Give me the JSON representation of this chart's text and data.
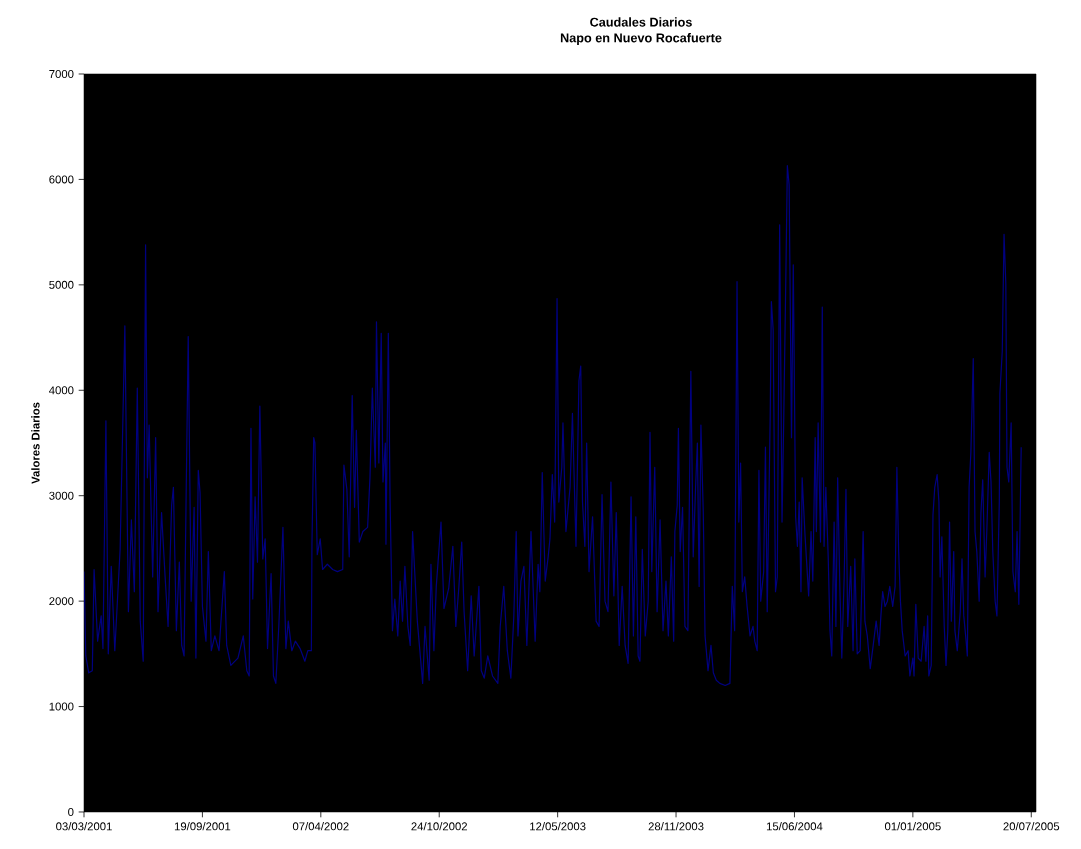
{
  "chart_data": {
    "type": "line",
    "title": "Caudales Diarios",
    "subtitle": "Napo en Nuevo Rocafuerte",
    "ylabel": "Valores Diarios",
    "xlim": [
      "2001-03-03",
      "2005-07-28"
    ],
    "ylim": [
      0,
      7000
    ],
    "xticks": [
      {
        "value": "2001-03-03",
        "label": "03/03/2001"
      },
      {
        "value": "2001-09-19",
        "label": "19/09/2001"
      },
      {
        "value": "2002-04-07",
        "label": "07/04/2002"
      },
      {
        "value": "2002-10-24",
        "label": "24/10/2002"
      },
      {
        "value": "2003-05-12",
        "label": "12/05/2003"
      },
      {
        "value": "2003-11-28",
        "label": "28/11/2003"
      },
      {
        "value": "2004-06-15",
        "label": "15/06/2004"
      },
      {
        "value": "2005-01-01",
        "label": "01/01/2005"
      },
      {
        "value": "2005-07-20",
        "label": "20/07/2005"
      }
    ],
    "yticks": [
      0,
      1000,
      2000,
      3000,
      4000,
      5000,
      6000,
      7000
    ],
    "x": [
      "2001-03-03",
      "2001-03-06",
      "2001-03-11",
      "2001-03-17",
      "2001-03-20",
      "2001-03-26",
      "2001-04-01",
      "2001-04-04",
      "2001-04-09",
      "2001-04-13",
      "2001-04-18",
      "2001-04-24",
      "2001-05-03",
      "2001-05-11",
      "2001-05-17",
      "2001-05-22",
      "2001-05-27",
      "2001-06-01",
      "2001-06-06",
      "2001-06-11",
      "2001-06-15",
      "2001-06-18",
      "2001-06-21",
      "2001-06-27",
      "2001-07-02",
      "2001-07-06",
      "2001-07-12",
      "2001-07-18",
      "2001-07-23",
      "2001-07-29",
      "2001-08-01",
      "2001-08-06",
      "2001-08-11",
      "2001-08-15",
      "2001-08-19",
      "2001-08-26",
      "2001-08-31",
      "2001-09-05",
      "2001-09-08",
      "2001-09-12",
      "2001-09-15",
      "2001-09-19",
      "2001-09-25",
      "2001-09-29",
      "2001-10-04",
      "2001-10-10",
      "2001-10-17",
      "2001-10-26",
      "2001-10-30",
      "2001-11-06",
      "2001-11-18",
      "2001-11-27",
      "2001-12-03",
      "2001-12-07",
      "2001-12-10",
      "2001-12-13",
      "2001-12-17",
      "2001-12-21",
      "2001-12-25",
      "2001-12-30",
      "2002-01-03",
      "2002-01-07",
      "2002-01-13",
      "2002-01-17",
      "2002-01-21",
      "2002-01-26",
      "2002-02-02",
      "2002-02-07",
      "2002-02-11",
      "2002-02-17",
      "2002-02-23",
      "2002-03-03",
      "2002-03-11",
      "2002-03-16",
      "2002-03-22",
      "2002-03-23",
      "2002-03-26",
      "2002-03-28",
      "2002-04-01",
      "2002-04-06",
      "2002-04-10",
      "2002-04-18",
      "2002-04-27",
      "2002-05-05",
      "2002-05-14",
      "2002-05-16",
      "2002-05-21",
      "2002-05-25",
      "2002-05-30",
      "2002-06-03",
      "2002-06-06",
      "2002-06-11",
      "2002-06-17",
      "2002-06-25",
      "2002-06-29",
      "2002-07-03",
      "2002-07-08",
      "2002-07-10",
      "2002-07-14",
      "2002-07-18",
      "2002-07-21",
      "2002-07-25",
      "2002-07-26",
      "2002-07-30",
      "2002-08-02",
      "2002-08-06",
      "2002-08-10",
      "2002-08-15",
      "2002-08-19",
      "2002-08-23",
      "2002-08-27",
      "2002-09-01",
      "2002-09-05",
      "2002-09-09",
      "2002-09-17",
      "2002-09-26",
      "2002-09-30",
      "2002-10-07",
      "2002-10-10",
      "2002-10-15",
      "2002-10-19",
      "2002-10-27",
      "2002-11-01",
      "2002-11-09",
      "2002-11-16",
      "2002-11-21",
      "2002-11-26",
      "2002-12-01",
      "2002-12-05",
      "2002-12-11",
      "2002-12-17",
      "2002-12-22",
      "2002-12-30",
      "2003-01-03",
      "2003-01-08",
      "2003-01-14",
      "2003-01-22",
      "2003-01-31",
      "2003-02-04",
      "2003-02-10",
      "2003-02-16",
      "2003-02-22",
      "2003-02-27",
      "2003-03-03",
      "2003-03-06",
      "2003-03-11",
      "2003-03-16",
      "2003-03-21",
      "2003-03-28",
      "2003-04-04",
      "2003-04-09",
      "2003-04-12",
      "2003-04-16",
      "2003-04-21",
      "2003-04-26",
      "2003-04-29",
      "2003-05-03",
      "2003-05-07",
      "2003-05-11",
      "2003-05-14",
      "2003-05-19",
      "2003-05-21",
      "2003-05-26",
      "2003-06-02",
      "2003-06-06",
      "2003-06-12",
      "2003-06-17",
      "2003-06-20",
      "2003-06-23",
      "2003-06-27",
      "2003-06-30",
      "2003-07-04",
      "2003-07-10",
      "2003-07-16",
      "2003-07-21",
      "2003-07-26",
      "2003-07-31",
      "2003-08-05",
      "2003-08-10",
      "2003-08-15",
      "2003-08-19",
      "2003-08-24",
      "2003-08-29",
      "2003-09-03",
      "2003-09-08",
      "2003-09-13",
      "2003-09-17",
      "2003-09-21",
      "2003-09-25",
      "2003-09-28",
      "2003-10-02",
      "2003-10-07",
      "2003-10-12",
      "2003-10-15",
      "2003-10-18",
      "2003-10-23",
      "2003-10-27",
      "2003-11-01",
      "2003-11-06",
      "2003-11-11",
      "2003-11-15",
      "2003-11-20",
      "2003-11-24",
      "2003-11-26",
      "2003-11-30",
      "2003-12-02",
      "2003-12-05",
      "2003-12-09",
      "2003-12-13",
      "2003-12-18",
      "2003-12-23",
      "2003-12-27",
      "2003-12-31",
      "2004-01-03",
      "2004-01-06",
      "2004-01-09",
      "2004-01-13",
      "2004-01-16",
      "2004-01-21",
      "2004-01-26",
      "2004-01-30",
      "2004-02-04",
      "2004-02-10",
      "2004-02-19",
      "2004-02-27",
      "2004-03-02",
      "2004-03-06",
      "2004-03-10",
      "2004-03-13",
      "2004-03-16",
      "2004-03-19",
      "2004-03-23",
      "2004-03-27",
      "2004-04-01",
      "2004-04-06",
      "2004-04-09",
      "2004-04-13",
      "2004-04-16",
      "2004-04-19",
      "2004-04-24",
      "2004-04-27",
      "2004-04-30",
      "2004-05-05",
      "2004-05-07",
      "2004-05-10",
      "2004-05-14",
      "2004-05-17",
      "2004-05-21",
      "2004-05-25",
      "2004-05-28",
      "2004-06-01",
      "2004-06-03",
      "2004-06-06",
      "2004-06-10",
      "2004-06-13",
      "2004-06-17",
      "2004-06-20",
      "2004-06-23",
      "2004-06-26",
      "2004-06-28",
      "2004-07-03",
      "2004-07-06",
      "2004-07-09",
      "2004-07-13",
      "2004-07-16",
      "2004-07-20",
      "2004-07-22",
      "2004-07-25",
      "2004-07-29",
      "2004-08-01",
      "2004-08-04",
      "2004-08-07",
      "2004-08-11",
      "2004-08-14",
      "2004-08-17",
      "2004-08-21",
      "2004-08-24",
      "2004-08-27",
      "2004-08-31",
      "2004-09-03",
      "2004-09-07",
      "2004-09-10",
      "2004-09-13",
      "2004-09-18",
      "2004-09-22",
      "2004-09-25",
      "2004-09-29",
      "2004-10-04",
      "2004-10-09",
      "2004-10-12",
      "2004-10-16",
      "2004-10-21",
      "2004-10-26",
      "2004-10-31",
      "2004-11-05",
      "2004-11-08",
      "2004-11-11",
      "2004-11-15",
      "2004-11-19",
      "2004-11-23",
      "2004-11-28",
      "2004-12-02",
      "2004-12-05",
      "2004-12-08",
      "2004-12-11",
      "2004-12-14",
      "2004-12-19",
      "2004-12-24",
      "2004-12-27",
      "2005-01-01",
      "2005-01-03",
      "2005-01-06",
      "2005-01-10",
      "2005-01-15",
      "2005-01-20",
      "2005-01-23",
      "2005-01-26",
      "2005-01-28",
      "2005-02-01",
      "2005-02-04",
      "2005-02-07",
      "2005-02-11",
      "2005-02-14",
      "2005-02-16",
      "2005-02-19",
      "2005-02-23",
      "2005-02-26",
      "2005-03-01",
      "2005-03-04",
      "2005-03-07",
      "2005-03-11",
      "2005-03-13",
      "2005-03-17",
      "2005-03-22",
      "2005-03-25",
      "2005-03-28",
      "2005-04-01",
      "2005-04-03",
      "2005-04-06",
      "2005-04-09",
      "2005-04-13",
      "2005-04-16",
      "2005-04-19",
      "2005-04-23",
      "2005-04-26",
      "2005-04-29",
      "2005-05-03",
      "2005-05-06",
      "2005-05-10",
      "2005-05-13",
      "2005-05-16",
      "2005-05-20",
      "2005-05-23",
      "2005-05-27",
      "2005-05-28",
      "2005-06-01",
      "2005-06-04",
      "2005-06-07",
      "2005-06-09",
      "2005-06-12",
      "2005-06-16",
      "2005-06-19",
      "2005-06-23",
      "2005-06-26",
      "2005-06-29",
      "2005-07-03"
    ],
    "series": [
      {
        "color": "#000080",
        "values": [
          2280,
          1480,
          1320,
          1340,
          2300,
          1620,
          1860,
          1550,
          3710,
          1500,
          2330,
          1530,
          2490,
          4610,
          1900,
          2770,
          2090,
          4020,
          1810,
          1430,
          5380,
          3170,
          3670,
          2230,
          3550,
          1900,
          2840,
          2230,
          1760,
          2910,
          3080,
          1720,
          2370,
          1580,
          1480,
          4510,
          2000,
          2890,
          1460,
          3240,
          3030,
          1950,
          1620,
          2470,
          1530,
          1670,
          1530,
          2280,
          1580,
          1390,
          1460,
          1670,
          1340,
          1290,
          3640,
          2020,
          2990,
          2370,
          3850,
          2400,
          2590,
          1550,
          2260,
          1290,
          1220,
          1760,
          2700,
          1550,
          1810,
          1530,
          1620,
          1550,
          1430,
          1530,
          1530,
          2540,
          3550,
          3500,
          2440,
          2590,
          2300,
          2350,
          2300,
          2280,
          2300,
          3290,
          3060,
          2420,
          3950,
          2890,
          3620,
          2560,
          2660,
          2700,
          3170,
          4020,
          3270,
          4650,
          3310,
          4540,
          3130,
          3500,
          2540,
          4540,
          2940,
          1720,
          2020,
          1670,
          2190,
          1810,
          2330,
          1760,
          1580,
          2660,
          1810,
          1220,
          1760,
          1250,
          2350,
          1530,
          2140,
          2750,
          1930,
          2120,
          2520,
          1760,
          2120,
          2560,
          1900,
          1340,
          2050,
          1480,
          2140,
          1340,
          1270,
          1480,
          1290,
          1220,
          1760,
          2140,
          1530,
          1270,
          1860,
          2660,
          1670,
          2190,
          2330,
          1580,
          2660,
          1620,
          2350,
          2090,
          3220,
          2190,
          2420,
          2590,
          3200,
          2750,
          4870,
          2940,
          3270,
          3690,
          2660,
          3080,
          3780,
          2520,
          4090,
          4230,
          2940,
          2520,
          3500,
          2280,
          2800,
          1810,
          1760,
          3010,
          2000,
          1900,
          3130,
          2050,
          2840,
          1580,
          2140,
          1580,
          1410,
          2990,
          1670,
          2800,
          1480,
          1430,
          2490,
          1670,
          2000,
          3600,
          2280,
          3270,
          1900,
          2770,
          1720,
          2190,
          1670,
          2420,
          1620,
          2660,
          2910,
          3640,
          2470,
          2890,
          1760,
          1720,
          4180,
          2420,
          3080,
          3500,
          2140,
          3670,
          2840,
          1670,
          1340,
          1580,
          1320,
          1250,
          1220,
          1200,
          1220,
          2140,
          1720,
          5030,
          2750,
          3310,
          2090,
          2230,
          1950,
          1670,
          1760,
          1620,
          1530,
          3240,
          2000,
          2280,
          3460,
          1900,
          3740,
          4840,
          4580,
          2090,
          2230,
          5570,
          2750,
          3760,
          5290,
          6130,
          5950,
          3550,
          5190,
          2800,
          2520,
          2940,
          2090,
          3170,
          2610,
          2330,
          2050,
          2660,
          2190,
          3550,
          2660,
          3690,
          2560,
          4790,
          2520,
          3080,
          2420,
          1720,
          1480,
          2750,
          1760,
          3170,
          2050,
          1460,
          2230,
          3060,
          1760,
          2330,
          1530,
          2400,
          1500,
          1530,
          2660,
          1810,
          1670,
          1360,
          1580,
          1810,
          1580,
          1860,
          2090,
          1950,
          2000,
          2140,
          1950,
          2140,
          3270,
          2470,
          2000,
          1720,
          1480,
          1530,
          1290,
          1460,
          1290,
          1970,
          1460,
          1430,
          1760,
          1430,
          1860,
          1290,
          1390,
          2820,
          3080,
          3200,
          2940,
          2230,
          2610,
          1760,
          1390,
          1720,
          2750,
          1810,
          2470,
          1720,
          1530,
          1900,
          2400,
          1860,
          1620,
          1480,
          3080,
          3410,
          4300,
          2660,
          2470,
          2000,
          2840,
          3150,
          2230,
          2680,
          3410,
          3130,
          2470,
          2000,
          1860,
          2940,
          3970,
          4370,
          5480,
          5010,
          3270,
          3130,
          3690,
          2280,
          2090,
          2660,
          1970,
          3460
        ]
      }
    ]
  }
}
